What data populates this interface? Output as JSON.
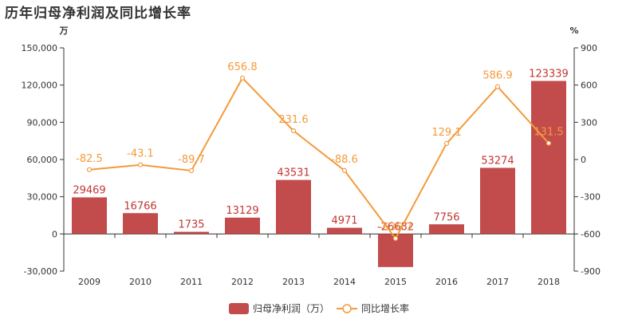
{
  "title": "历年归母净利润及同比增长率",
  "colors": {
    "bar": "#c24c4c",
    "bar_label": "#c23531",
    "line": "#f49a3a",
    "axis": "#333333",
    "grid": "#e0e0e0"
  },
  "chart_data": {
    "type": "bar",
    "categories": [
      "2009",
      "2010",
      "2011",
      "2012",
      "2013",
      "2014",
      "2015",
      "2016",
      "2017",
      "2018"
    ],
    "series": [
      {
        "name": "归母净利润（万）",
        "type": "bar",
        "axis": "left",
        "values": [
          29469,
          16766,
          1735,
          13129,
          43531,
          4971,
          -26682,
          7756,
          53274,
          123339
        ]
      },
      {
        "name": "同比增长率",
        "type": "line",
        "axis": "right",
        "values": [
          -82.5,
          -43.1,
          -89.7,
          656.8,
          231.6,
          -88.6,
          -636.7,
          129.1,
          586.9,
          131.5
        ]
      }
    ],
    "y_left": {
      "unit": "万",
      "ylim": [
        -30000,
        150000
      ],
      "ticks": [
        "-30,000",
        "0",
        "30,000",
        "60,000",
        "90,000",
        "120,000",
        "150,000"
      ]
    },
    "y_right": {
      "unit": "%",
      "ylim": [
        -900,
        900
      ],
      "ticks": [
        "-900",
        "-600",
        "-300",
        "0",
        "300",
        "600",
        "900"
      ]
    },
    "legend": "bottom-center",
    "grid": false
  }
}
